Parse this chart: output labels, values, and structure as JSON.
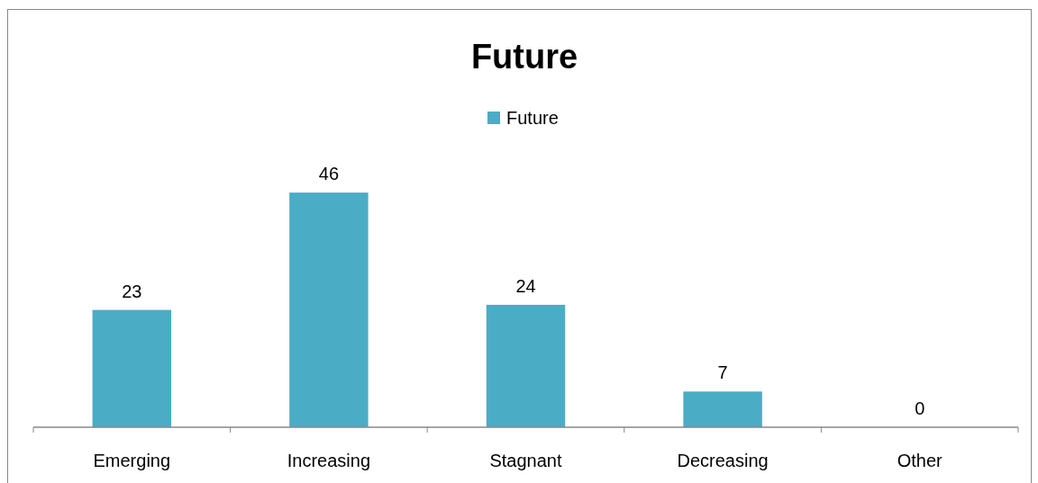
{
  "chart_data": {
    "type": "bar",
    "title": "Future",
    "categories": [
      "Emerging",
      "Increasing",
      "Stagnant",
      "Decreasing",
      "Other"
    ],
    "series": [
      {
        "name": "Future",
        "color": "#4bacc6",
        "values": [
          23,
          46,
          24,
          7,
          0
        ]
      }
    ],
    "data_labels": true,
    "legend": "top",
    "grid": false
  }
}
